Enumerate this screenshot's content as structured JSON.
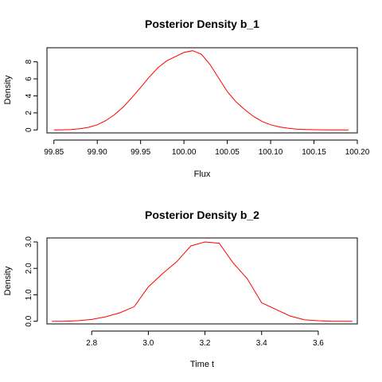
{
  "chart_data": [
    {
      "type": "line",
      "title": "Posterior Density b_1",
      "xlabel": "Flux",
      "ylabel": "Density",
      "xlim": [
        99.842,
        100.2
      ],
      "ylim": [
        -0.35,
        9.65
      ],
      "xticks": [
        99.85,
        99.9,
        99.95,
        100.0,
        100.05,
        100.1,
        100.15,
        100.2
      ],
      "xtick_labels": [
        "99.85",
        "99.90",
        "99.95",
        "100.00",
        "100.05",
        "100.10",
        "100.15",
        "100.20"
      ],
      "yticks": [
        0,
        2,
        4,
        6,
        8
      ],
      "ytick_labels": [
        "0",
        "2",
        "4",
        "6",
        "8"
      ],
      "color": "#ff0000",
      "grid": false,
      "series": [
        {
          "x": [
            99.85,
            99.86,
            99.87,
            99.88,
            99.89,
            99.9,
            99.91,
            99.92,
            99.93,
            99.94,
            99.95,
            99.96,
            99.97,
            99.98,
            99.99,
            100.0,
            100.01,
            100.02,
            100.03,
            100.04,
            100.05,
            100.06,
            100.07,
            100.08,
            100.09,
            100.1,
            100.11,
            100.12,
            100.13,
            100.14,
            100.15,
            100.16,
            100.17,
            100.18,
            100.19
          ],
          "y": [
            0.0,
            0.01,
            0.05,
            0.15,
            0.3,
            0.6,
            1.1,
            1.8,
            2.7,
            3.8,
            5.0,
            6.2,
            7.3,
            8.1,
            8.6,
            9.1,
            9.3,
            8.9,
            7.7,
            6.1,
            4.5,
            3.3,
            2.4,
            1.6,
            1.0,
            0.6,
            0.35,
            0.2,
            0.1,
            0.05,
            0.02,
            0.01,
            0.0,
            0.0,
            0.0
          ]
        }
      ]
    },
    {
      "type": "line",
      "title": "Posterior Density b_2",
      "xlabel": "Time t",
      "ylabel": "Density",
      "xlim": [
        2.642,
        3.738
      ],
      "ylim": [
        -0.1,
        3.15
      ],
      "xticks": [
        2.8,
        3.0,
        3.2,
        3.4,
        3.6
      ],
      "xtick_labels": [
        "2.8",
        "3.0",
        "3.2",
        "3.4",
        "3.6"
      ],
      "yticks": [
        0.0,
        1.0,
        2.0,
        3.0
      ],
      "ytick_labels": [
        "0.0",
        "1.0",
        "2.0",
        "3.0"
      ],
      "color": "#ff0000",
      "grid": false,
      "series": [
        {
          "x": [
            2.66,
            2.7,
            2.75,
            2.8,
            2.85,
            2.9,
            2.95,
            3.0,
            3.05,
            3.1,
            3.15,
            3.2,
            3.25,
            3.3,
            3.35,
            3.4,
            3.45,
            3.5,
            3.55,
            3.6,
            3.65,
            3.72
          ],
          "y": [
            0.0,
            0.0,
            0.02,
            0.07,
            0.17,
            0.32,
            0.55,
            1.3,
            1.8,
            2.25,
            2.85,
            3.0,
            2.95,
            2.2,
            1.6,
            0.7,
            0.45,
            0.2,
            0.06,
            0.02,
            0.0,
            0.0
          ]
        }
      ]
    }
  ]
}
